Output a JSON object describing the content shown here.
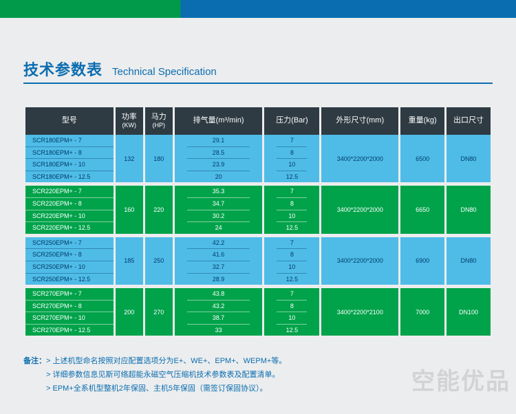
{
  "title": {
    "cn": "技术参数表",
    "en": "Technical Specification"
  },
  "columns": {
    "model": "型号",
    "kw": "功率",
    "kw_sub": "(KW)",
    "hp": "马力",
    "hp_sub": "(HP)",
    "air": "排气量(m³/min)",
    "bar": "压力(Bar)",
    "dim": "外形尺寸(mm)",
    "wt": "重量(kg)",
    "out": "出口尺寸"
  },
  "groups": [
    {
      "models": [
        "SCR180EPM+ - 7",
        "SCR180EPM+ - 8",
        "SCR180EPM+ - 10",
        "SCR180EPM+ - 12.5"
      ],
      "kw": "132",
      "hp": "180",
      "air": [
        "29.1",
        "28.5",
        "23.9",
        "20"
      ],
      "bar": [
        "7",
        "8",
        "10",
        "12.5"
      ],
      "dim": "3400*2200*2000",
      "wt": "6500",
      "out": "DN80"
    },
    {
      "models": [
        "SCR220EPM+ - 7",
        "SCR220EPM+ - 8",
        "SCR220EPM+ - 10",
        "SCR220EPM+ - 12.5"
      ],
      "kw": "160",
      "hp": "220",
      "air": [
        "35.3",
        "34.7",
        "30.2",
        "24"
      ],
      "bar": [
        "7",
        "8",
        "10",
        "12.5"
      ],
      "dim": "3400*2200*2000",
      "wt": "6650",
      "out": "DN80"
    },
    {
      "models": [
        "SCR250EPM+ - 7",
        "SCR250EPM+ - 8",
        "SCR250EPM+ - 10",
        "SCR250EPM+ - 12.5"
      ],
      "kw": "185",
      "hp": "250",
      "air": [
        "42.2",
        "41.6",
        "32.7",
        "28.9"
      ],
      "bar": [
        "7",
        "8",
        "10",
        "12.5"
      ],
      "dim": "3400*2200*2000",
      "wt": "6900",
      "out": "DN80"
    },
    {
      "models": [
        "SCR270EPM+ - 7",
        "SCR270EPM+ - 8",
        "SCR270EPM+ - 10",
        "SCR270EPM+ - 12.5"
      ],
      "kw": "200",
      "hp": "270",
      "air": [
        "43.8",
        "43.2",
        "38.7",
        "33"
      ],
      "bar": [
        "7",
        "8",
        "10",
        "12.5"
      ],
      "dim": "3400*2200*2100",
      "wt": "7000",
      "out": "DN100"
    }
  ],
  "notes": {
    "label": "备注：",
    "lines": [
      "> 上述机型命名按照对应配置选项分为E+、WE+、EPM+、WEPM+等。",
      "> 详细参数信息见斯可络超能永磁空气压缩机技术参数表及配置清单。",
      "> EPM+全系机型整机2年保固、主机5年保固（需签订保固协议）。"
    ]
  },
  "watermark": "空能优品"
}
